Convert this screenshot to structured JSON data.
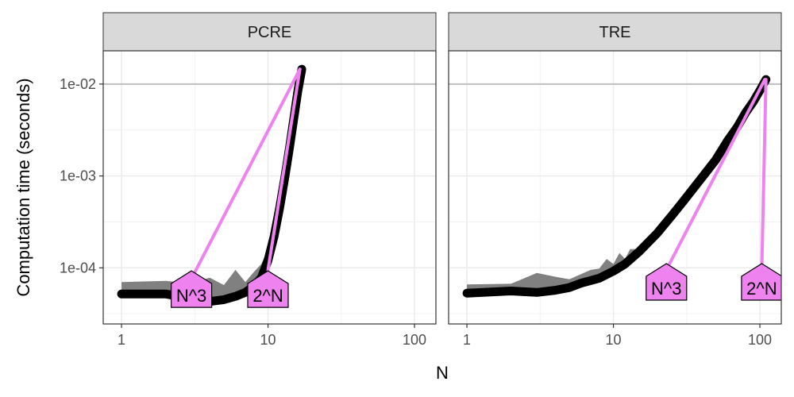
{
  "chart_data": {
    "type": "line",
    "xlabel": "N",
    "ylabel": "Computation time (seconds)",
    "x_scale": "log10",
    "y_scale": "log10",
    "xlim": [
      0.75,
      140
    ],
    "ylim": [
      2.45e-05,
      0.023
    ],
    "x_ticks": [
      {
        "value": 1,
        "label": "1"
      },
      {
        "value": 10,
        "label": "10"
      },
      {
        "value": 100,
        "label": "100"
      }
    ],
    "y_ticks": [
      {
        "value": 0.0001,
        "label": "1e-04"
      },
      {
        "value": 0.001,
        "label": "1e-03"
      },
      {
        "value": 0.01,
        "label": "1e-02"
      }
    ],
    "grid": true,
    "reference_line_y": 0.01,
    "colors": {
      "median": "#000000",
      "band": "#808080",
      "asymptote": "#ee82ee",
      "strip": "#d9d9d9",
      "reference": "#bfbfbf"
    },
    "panels": [
      {
        "name": "PCRE",
        "median": [
          {
            "x": 1,
            "y": 5.2e-05
          },
          {
            "x": 2,
            "y": 5.2e-05
          },
          {
            "x": 3,
            "y": 4.6e-05
          },
          {
            "x": 4,
            "y": 4.3e-05
          },
          {
            "x": 5,
            "y": 4.5e-05
          },
          {
            "x": 6,
            "y": 4.9e-05
          },
          {
            "x": 7,
            "y": 5.4e-05
          },
          {
            "x": 8,
            "y": 6.3e-05
          },
          {
            "x": 9,
            "y": 7.8e-05
          },
          {
            "x": 10,
            "y": 0.00012
          },
          {
            "x": 11,
            "y": 0.00022
          },
          {
            "x": 12,
            "y": 0.00045
          },
          {
            "x": 13,
            "y": 0.00095
          },
          {
            "x": 14,
            "y": 0.002
          },
          {
            "x": 15,
            "y": 0.0042
          },
          {
            "x": 16,
            "y": 0.0085
          },
          {
            "x": 17,
            "y": 0.0145
          }
        ],
        "band_max": [
          {
            "x": 1,
            "y": 7e-05
          },
          {
            "x": 2,
            "y": 7.2e-05
          },
          {
            "x": 3,
            "y": 6.8e-05
          },
          {
            "x": 4,
            "y": 7.8e-05
          },
          {
            "x": 5,
            "y": 6.5e-05
          },
          {
            "x": 6,
            "y": 9.5e-05
          },
          {
            "x": 7,
            "y": 7e-05
          },
          {
            "x": 8,
            "y": 9e-05
          },
          {
            "x": 9,
            "y": 0.00011
          },
          {
            "x": 10,
            "y": 0.00016
          }
        ],
        "asymptotes": [
          {
            "label": "N^3",
            "line": [
              {
                "x": 3,
                "y": 7.6e-05
              },
              {
                "x": 16.5,
                "y": 0.0145
              }
            ],
            "label_at": {
              "x": 3.0,
              "y": 5e-05
            }
          },
          {
            "label": "2^N",
            "line": [
              {
                "x": 10,
                "y": 9.5e-05
              },
              {
                "x": 16.5,
                "y": 0.0145
              }
            ],
            "label_at": {
              "x": 10.0,
              "y": 5e-05
            }
          }
        ]
      },
      {
        "name": "TRE",
        "median": [
          {
            "x": 1,
            "y": 5.3e-05
          },
          {
            "x": 2,
            "y": 5.6e-05
          },
          {
            "x": 3,
            "y": 5.4e-05
          },
          {
            "x": 4,
            "y": 5.7e-05
          },
          {
            "x": 5,
            "y": 6.1e-05
          },
          {
            "x": 6,
            "y": 6.8e-05
          },
          {
            "x": 8,
            "y": 7.7e-05
          },
          {
            "x": 10,
            "y": 9.2e-05
          },
          {
            "x": 12,
            "y": 0.00011
          },
          {
            "x": 15,
            "y": 0.00015
          },
          {
            "x": 20,
            "y": 0.00024
          },
          {
            "x": 25,
            "y": 0.00037
          },
          {
            "x": 30,
            "y": 0.00053
          },
          {
            "x": 40,
            "y": 0.00095
          },
          {
            "x": 50,
            "y": 0.0015
          },
          {
            "x": 60,
            "y": 0.0024
          },
          {
            "x": 70,
            "y": 0.0034
          },
          {
            "x": 80,
            "y": 0.0049
          },
          {
            "x": 90,
            "y": 0.0064
          },
          {
            "x": 100,
            "y": 0.0085
          },
          {
            "x": 110,
            "y": 0.0112
          }
        ],
        "band_max": [
          {
            "x": 1,
            "y": 6.6e-05
          },
          {
            "x": 2,
            "y": 6.7e-05
          },
          {
            "x": 3,
            "y": 8.8e-05
          },
          {
            "x": 4,
            "y": 8e-05
          },
          {
            "x": 5,
            "y": 7.5e-05
          },
          {
            "x": 7,
            "y": 9.5e-05
          },
          {
            "x": 8,
            "y": 9.8e-05
          },
          {
            "x": 9,
            "y": 0.000125
          },
          {
            "x": 10,
            "y": 0.00011
          },
          {
            "x": 11,
            "y": 0.000145
          },
          {
            "x": 12,
            "y": 0.000125
          },
          {
            "x": 13,
            "y": 0.00016
          },
          {
            "x": 15,
            "y": 0.00016
          },
          {
            "x": 17,
            "y": 0.0002
          },
          {
            "x": 20,
            "y": 0.00024
          }
        ],
        "asymptotes": [
          {
            "label": "N^3",
            "line": [
              {
                "x": 23,
                "y": 9.5e-05
              },
              {
                "x": 108,
                "y": 0.0112
              }
            ],
            "label_at": {
              "x": 23.0,
              "y": 6e-05
            }
          },
          {
            "label": "2^N",
            "line": [
              {
                "x": 103,
                "y": 9.5e-05
              },
              {
                "x": 110,
                "y": 0.0112
              }
            ],
            "label_at": {
              "x": 103.0,
              "y": 6e-05
            }
          }
        ]
      }
    ]
  }
}
